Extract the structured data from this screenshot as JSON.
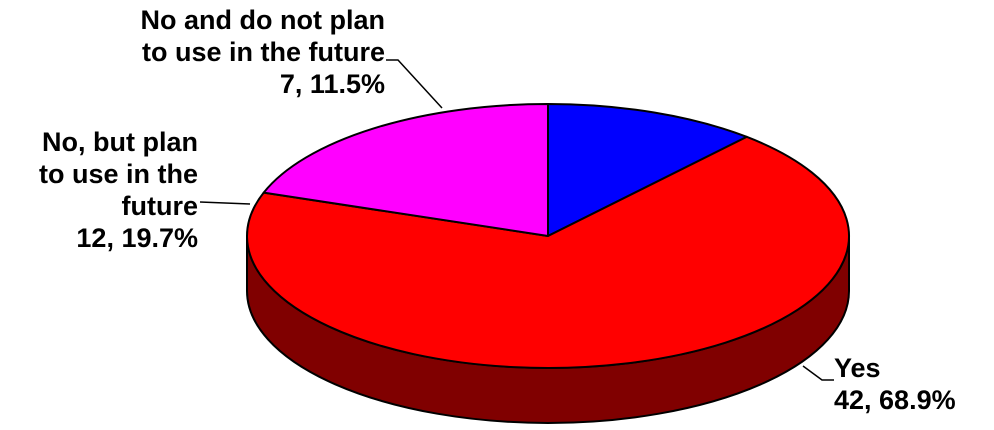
{
  "chart_data": {
    "type": "pie",
    "style": "3d",
    "total": 61,
    "slices": [
      {
        "label_lines": [
          "Yes"
        ],
        "count": 42,
        "percent": 68.9,
        "value_text": "42, 68.9%",
        "color": "#FF0000",
        "side_color": "#800000"
      },
      {
        "label_lines": [
          "No, but plan",
          "to use in the",
          "future"
        ],
        "count": 12,
        "percent": 19.7,
        "value_text": "12, 19.7%",
        "color": "#FF00FF",
        "side_color": "#800080"
      },
      {
        "label_lines": [
          "No and do not plan",
          "to use in the future"
        ],
        "count": 7,
        "percent": 11.5,
        "value_text": "7, 11.5%",
        "color": "#0000FF",
        "side_color": "#000080"
      }
    ]
  }
}
